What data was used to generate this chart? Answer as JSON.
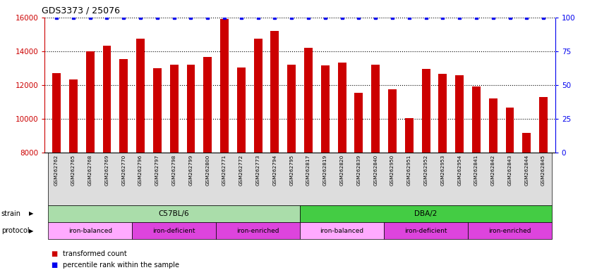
{
  "title": "GDS3373 / 25076",
  "samples": [
    "GSM262762",
    "GSM262765",
    "GSM262768",
    "GSM262769",
    "GSM262770",
    "GSM262796",
    "GSM262797",
    "GSM262798",
    "GSM262799",
    "GSM262800",
    "GSM262771",
    "GSM262772",
    "GSM262773",
    "GSM262794",
    "GSM262795",
    "GSM262817",
    "GSM262819",
    "GSM262820",
    "GSM262839",
    "GSM262840",
    "GSM262950",
    "GSM262951",
    "GSM262952",
    "GSM262953",
    "GSM262954",
    "GSM262841",
    "GSM262842",
    "GSM262843",
    "GSM262844",
    "GSM262845"
  ],
  "values": [
    12700,
    12350,
    14000,
    14350,
    13550,
    14750,
    13000,
    13200,
    13200,
    13650,
    15900,
    13050,
    14750,
    15200,
    13200,
    14200,
    13150,
    13350,
    11550,
    13200,
    11750,
    10050,
    12950,
    12650,
    12600,
    11900,
    11200,
    10650,
    9150,
    11300
  ],
  "percentile_values": [
    100,
    100,
    100,
    100,
    100,
    100,
    100,
    100,
    100,
    100,
    100,
    100,
    100,
    100,
    100,
    100,
    100,
    100,
    100,
    100,
    100,
    100,
    100,
    100,
    100,
    100,
    100,
    100,
    100,
    100
  ],
  "bar_color": "#cc0000",
  "dot_color": "#0000ee",
  "ylim_left": [
    8000,
    16000
  ],
  "ylim_right": [
    0,
    100
  ],
  "yticks_left": [
    8000,
    10000,
    12000,
    14000,
    16000
  ],
  "yticks_right": [
    0,
    25,
    50,
    75,
    100
  ],
  "dotted_line_values": [
    10000,
    12000,
    14000
  ],
  "strain_groups": [
    {
      "label": "C57BL/6",
      "start": 0,
      "end": 15,
      "color": "#aaddaa"
    },
    {
      "label": "DBA/2",
      "start": 15,
      "end": 30,
      "color": "#44cc44"
    }
  ],
  "protocol_groups": [
    {
      "label": "iron-balanced",
      "start": 0,
      "end": 5,
      "color": "#ffaaff"
    },
    {
      "label": "iron-deficient",
      "start": 5,
      "end": 10,
      "color": "#dd44dd"
    },
    {
      "label": "iron-enriched",
      "start": 10,
      "end": 15,
      "color": "#dd44dd"
    },
    {
      "label": "iron-balanced",
      "start": 15,
      "end": 20,
      "color": "#ffaaff"
    },
    {
      "label": "iron-deficient",
      "start": 20,
      "end": 25,
      "color": "#dd44dd"
    },
    {
      "label": "iron-enriched",
      "start": 25,
      "end": 30,
      "color": "#dd44dd"
    }
  ],
  "legend_items": [
    {
      "label": "transformed count",
      "color": "#cc0000"
    },
    {
      "label": "percentile rank within the sample",
      "color": "#0000ee"
    }
  ],
  "strain_label": "strain",
  "protocol_label": "protocol",
  "bar_width": 0.5,
  "background_color": "#ffffff",
  "plot_bg_color": "#ffffff",
  "tick_bg_color": "#dddddd"
}
